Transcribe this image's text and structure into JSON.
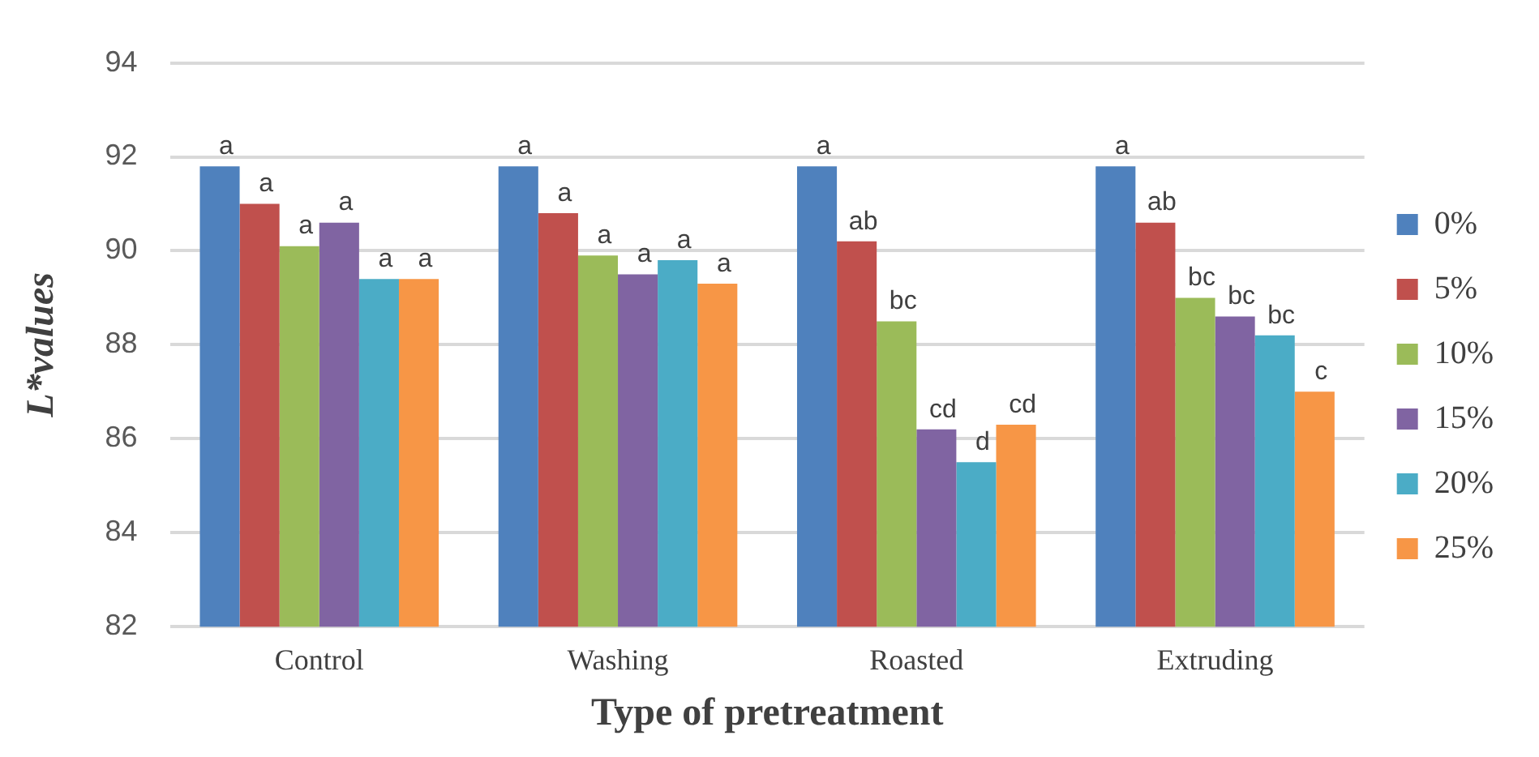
{
  "chart_data": {
    "type": "bar",
    "xlabel": "Type of pretreatment",
    "ylabel": "L*values",
    "categories": [
      "Control",
      "Washing",
      "Roasted",
      "Extruding"
    ],
    "series": [
      {
        "name": "0%",
        "color": "#4f81bd",
        "values": [
          91.8,
          91.8,
          91.8,
          91.8
        ],
        "value_labels": [
          "a",
          "a",
          "a",
          "a"
        ]
      },
      {
        "name": "5%",
        "color": "#c0504d",
        "values": [
          91.0,
          90.8,
          90.2,
          90.6
        ],
        "value_labels": [
          "a",
          "a",
          "ab",
          "ab"
        ]
      },
      {
        "name": "10%",
        "color": "#9bbb59",
        "values": [
          90.1,
          89.9,
          88.5,
          89.0
        ],
        "value_labels": [
          "a",
          "a",
          "bc",
          "bc"
        ]
      },
      {
        "name": "15%",
        "color": "#8064a2",
        "values": [
          90.6,
          89.5,
          86.2,
          88.6
        ],
        "value_labels": [
          "a",
          "a",
          "cd",
          "bc"
        ]
      },
      {
        "name": "20%",
        "color": "#4bacc6",
        "values": [
          89.4,
          89.8,
          85.5,
          88.2
        ],
        "value_labels": [
          "a",
          "a",
          "d",
          "bc"
        ]
      },
      {
        "name": "25%",
        "color": "#f79646",
        "values": [
          89.4,
          89.3,
          86.3,
          87.0
        ],
        "value_labels": [
          "a",
          "a",
          "cd",
          "c"
        ]
      }
    ],
    "ylim": [
      82,
      94
    ],
    "yticks": [
      82,
      84,
      86,
      88,
      90,
      92,
      94
    ],
    "grid": "y",
    "legend": "right"
  }
}
